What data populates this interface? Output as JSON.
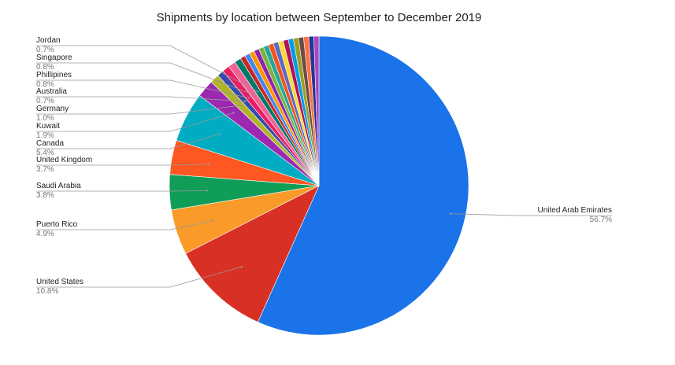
{
  "chart_data": {
    "type": "pie",
    "title": "Shipments by location between September to December 2019",
    "categories": [
      "United Arab Emirates",
      "United States",
      "Puerto Rico",
      "Saudi Arabia",
      "United Kingdom",
      "Canada",
      "Kuwait",
      "Germany",
      "Australia",
      "Phillipines",
      "Singapore",
      "Jordan",
      null,
      null,
      null,
      null,
      null,
      null,
      null,
      null,
      null,
      null,
      null,
      null,
      null,
      null,
      null,
      null
    ],
    "values": [
      56.7,
      10.8,
      4.9,
      3.8,
      3.7,
      5.4,
      1.9,
      1.0,
      0.7,
      0.8,
      0.8,
      0.7,
      0.55,
      0.55,
      0.55,
      0.55,
      0.55,
      0.55,
      0.55,
      0.55,
      0.55,
      0.55,
      0.55,
      0.55,
      0.55,
      0.55,
      0.55,
      0.55
    ],
    "value_labels": [
      "56.7%",
      "10.8%",
      "4.9%",
      "3.8%",
      "3.7%",
      "5.4%",
      "1.9%",
      "1.0%",
      "0.7%",
      "0.8%",
      "0.8%",
      "0.7%",
      null,
      null,
      null,
      null,
      null,
      null,
      null,
      null,
      null,
      null,
      null,
      null,
      null,
      null,
      null,
      null
    ],
    "colors": [
      "#1a73e8",
      "#d93025",
      "#fa9b29",
      "#0f9d58",
      "#ff5722",
      "#00acc1",
      "#9c27b0",
      "#afb42b",
      "#3949ab",
      "#e91e63",
      "#f06292",
      "#00796b",
      "#c62828",
      "#4285f4",
      "#ff9800",
      "#8e24aa",
      "#7cb342",
      "#26a69a",
      "#f4511e",
      "#5c6bc0",
      "#fdd835",
      "#ad1457",
      "#039be5",
      "#9e9d24",
      "#6d4c41",
      "#ff7043",
      "#283593",
      "#ab47bc"
    ]
  }
}
